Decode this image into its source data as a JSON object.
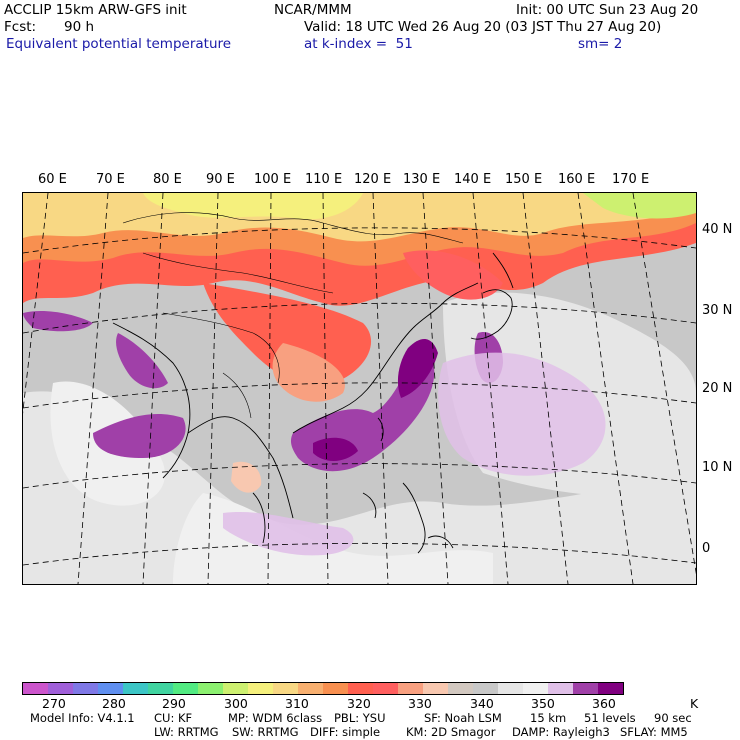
{
  "header": {
    "model": "ACCLIP 15km ARW-GFS init",
    "org": "NCAR/MMM",
    "init": "Init: 00 UTC Sun 23 Aug 20",
    "fcst_label": "Fcst:",
    "fcst_value": "90 h",
    "valid": "Valid: 18 UTC Wed 26 Aug 20 (03 JST Thu 27 Aug 20)",
    "field": "Equivalent potential temperature",
    "level": "at k-index =  51",
    "smooth": "sm= 2"
  },
  "map": {
    "lon_labels": [
      "60 E",
      "70 E",
      "80 E",
      "90 E",
      "100 E",
      "110 E",
      "120 E",
      "130 E",
      "140 E",
      "150 E",
      "160 E",
      "170 E"
    ],
    "lat_labels": [
      "40 N",
      "30 N",
      "20 N",
      "10 N",
      "0"
    ]
  },
  "colorbar": {
    "colors": [
      "#cc55cc",
      "#a05fd9",
      "#7f78e6",
      "#5f8ff0",
      "#3cc6c6",
      "#40d4a0",
      "#52eb82",
      "#8cf070",
      "#cdf070",
      "#f5f07d",
      "#f8d884",
      "#f8b070",
      "#f89050",
      "#ff6050",
      "#ff5f5f",
      "#f8a080",
      "#f8c8b0",
      "#d2c8c0",
      "#c8c8c8",
      "#e6e6e6",
      "#f0f0f0",
      "#e0c0e8",
      "#a040a8",
      "#800080"
    ],
    "labels": [
      "270",
      "280",
      "290",
      "300",
      "310",
      "320",
      "330",
      "340",
      "350",
      "360"
    ],
    "unit": "K"
  },
  "footer": {
    "line1": [
      "Model Info: V4.1.1",
      "CU: KF",
      "MP: WDM 6class",
      "PBL: YSU",
      "SF: Noah LSM",
      "15 km",
      "51 levels",
      "90 sec"
    ],
    "line2": [
      "LW: RRTMG",
      "SW: RRTMG",
      "DIFF: simple",
      "KM: 2D Smagor",
      "DAMP: Rayleigh3",
      "SFLAY: MM5"
    ]
  }
}
